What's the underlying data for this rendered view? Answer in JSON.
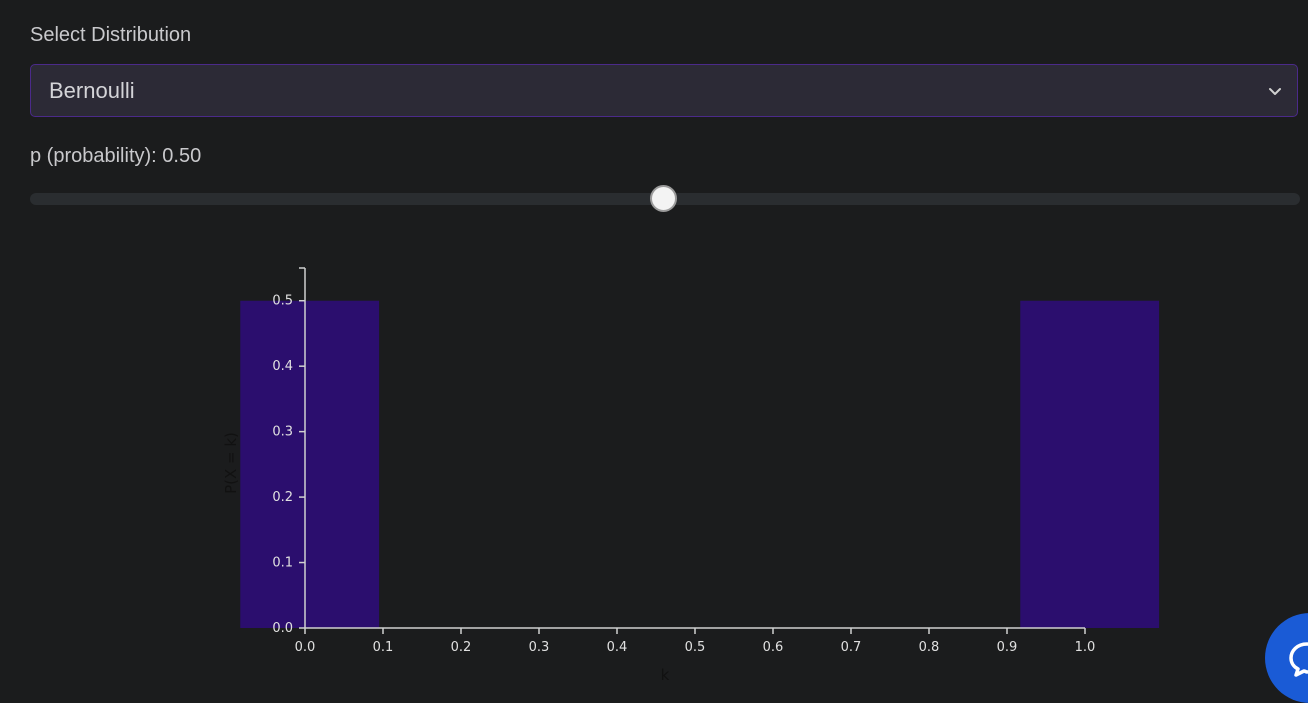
{
  "controls": {
    "select_label": "Select Distribution",
    "select_value": "Bernoulli",
    "param_label": "p (probability): 0.50",
    "p_value": 0.5,
    "slider_min": 0,
    "slider_max": 1
  },
  "colors": {
    "bar": "#2b0e6e",
    "axis": "#d0d0d0",
    "accent_border": "#4b2a8a",
    "chat_button": "#1a5bd6"
  },
  "icons": {
    "select_chevron": "chevron-down-icon",
    "chat": "chat-bubble-icon"
  },
  "chart_data": {
    "type": "bar",
    "x": [
      0,
      1
    ],
    "values": [
      0.5,
      0.5
    ],
    "bar_width": 0.2,
    "xlabel": "k",
    "ylabel": "P(X = k)",
    "xlim": [
      0,
      1
    ],
    "ylim": [
      0,
      0.55
    ],
    "xticks": [
      0.0,
      0.1,
      0.2,
      0.3,
      0.4,
      0.5,
      0.6,
      0.7,
      0.8,
      0.9,
      1.0
    ],
    "yticks": [
      0.0,
      0.1,
      0.2,
      0.3,
      0.4,
      0.5
    ],
    "xtick_labels": [
      "0.0",
      "0.1",
      "0.2",
      "0.3",
      "0.4",
      "0.5",
      "0.6",
      "0.7",
      "0.8",
      "0.9",
      "1.0"
    ],
    "ytick_labels": [
      "0.0",
      "0.1",
      "0.2",
      "0.3",
      "0.4",
      "0.5"
    ],
    "grid": false
  }
}
